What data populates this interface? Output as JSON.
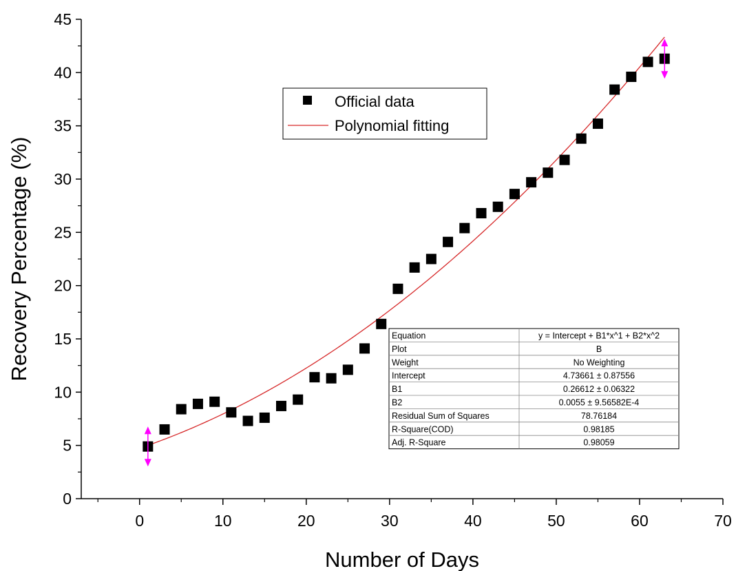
{
  "chart_data": {
    "type": "scatter",
    "xlabel": "Number of Days",
    "ylabel": "Recovery Percentage (%)",
    "xlim": [
      -7,
      70
    ],
    "ylim": [
      0,
      45
    ],
    "x_ticks": [
      0,
      10,
      20,
      30,
      40,
      50,
      60,
      70
    ],
    "y_ticks": [
      0,
      5,
      10,
      15,
      20,
      25,
      30,
      35,
      40,
      45
    ],
    "grid": false,
    "legend": {
      "placement": "top-center",
      "entries": [
        {
          "label": "Official data",
          "marker": "square",
          "color": "#000000"
        },
        {
          "label": "Polynomial fitting",
          "marker": "line",
          "color": "#d62728"
        }
      ]
    },
    "series": [
      {
        "name": "Official data",
        "kind": "scatter",
        "color": "#000000",
        "points": [
          {
            "x": 1,
            "y": 4.9
          },
          {
            "x": 3,
            "y": 6.5
          },
          {
            "x": 5,
            "y": 8.4
          },
          {
            "x": 7,
            "y": 8.9
          },
          {
            "x": 9,
            "y": 9.1
          },
          {
            "x": 11,
            "y": 8.1
          },
          {
            "x": 13,
            "y": 7.3
          },
          {
            "x": 15,
            "y": 7.6
          },
          {
            "x": 17,
            "y": 8.7
          },
          {
            "x": 19,
            "y": 9.3
          },
          {
            "x": 21,
            "y": 11.4
          },
          {
            "x": 23,
            "y": 11.3
          },
          {
            "x": 25,
            "y": 12.1
          },
          {
            "x": 27,
            "y": 14.1
          },
          {
            "x": 29,
            "y": 16.4
          },
          {
            "x": 31,
            "y": 19.7
          },
          {
            "x": 33,
            "y": 21.7
          },
          {
            "x": 35,
            "y": 22.5
          },
          {
            "x": 37,
            "y": 24.1
          },
          {
            "x": 39,
            "y": 25.4
          },
          {
            "x": 41,
            "y": 26.8
          },
          {
            "x": 43,
            "y": 27.4
          },
          {
            "x": 45,
            "y": 28.6
          },
          {
            "x": 47,
            "y": 29.7
          },
          {
            "x": 49,
            "y": 30.6
          },
          {
            "x": 51,
            "y": 31.8
          },
          {
            "x": 53,
            "y": 33.8
          },
          {
            "x": 55,
            "y": 35.2
          },
          {
            "x": 57,
            "y": 38.4
          },
          {
            "x": 59,
            "y": 39.6
          },
          {
            "x": 61,
            "y": 41.0
          },
          {
            "x": 63,
            "y": 41.3
          }
        ]
      },
      {
        "name": "Polynomial fitting",
        "kind": "line",
        "color": "#d62728",
        "equation": {
          "intercept": 4.73661,
          "b1": 0.26612,
          "b2": 0.0055
        },
        "x_range": [
          1,
          63
        ]
      }
    ],
    "range_markers": [
      {
        "x": 1,
        "y": 4.9,
        "color": "#ff00ff"
      },
      {
        "x": 63,
        "y": 41.3,
        "color": "#ff00ff"
      }
    ],
    "fit_table": {
      "rows": [
        {
          "label": "Equation",
          "value": "y = Intercept + B1*x^1 + B2*x^2"
        },
        {
          "label": "Plot",
          "value": "B"
        },
        {
          "label": "Weight",
          "value": "No Weighting"
        },
        {
          "label": "Intercept",
          "value": "4.73661 ± 0.87556"
        },
        {
          "label": "B1",
          "value": "0.26612 ± 0.06322"
        },
        {
          "label": "B2",
          "value": "0.0055 ± 9.56582E-4"
        },
        {
          "label": "Residual Sum of Squares",
          "value": "78.76184"
        },
        {
          "label": "R-Square(COD)",
          "value": "0.98185"
        },
        {
          "label": "Adj. R-Square",
          "value": "0.98059"
        }
      ]
    }
  }
}
